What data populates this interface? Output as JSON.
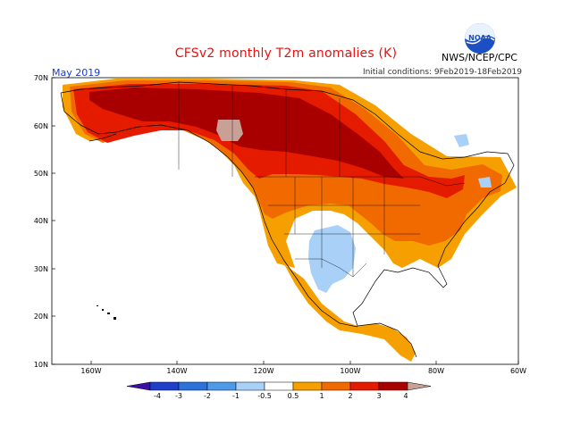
{
  "header": {
    "title": "CFSv2 monthly T2m anomalies (K)",
    "month": "May 2019",
    "initial_conditions": "Initial conditions: 9Feb2019-18Feb2019",
    "agency": "NWS/NCEP/CPC",
    "logo_text": "NOAA"
  },
  "axes": {
    "lat_labels": [
      "70N",
      "60N",
      "50N",
      "40N",
      "30N",
      "20N",
      "10N"
    ],
    "lon_labels": [
      "160W",
      "140W",
      "120W",
      "100W",
      "80W",
      "60W"
    ]
  },
  "colorbar": {
    "labels": [
      "-4",
      "-3",
      "-2",
      "-1",
      "-0.5",
      "0.5",
      "1",
      "2",
      "3",
      "4"
    ],
    "colors": [
      "#3b0fa8",
      "#1f3fc9",
      "#2d72d8",
      "#4f9ae8",
      "#a9d1f7",
      "#ffffff",
      "#f5a000",
      "#f06a00",
      "#e51b00",
      "#a80000",
      "#c8a096"
    ]
  },
  "legend_colors": {
    "neutral": "#ffffff",
    "warm_1": "#f5a000",
    "warm_2": "#f06a00",
    "warm_3": "#e51b00",
    "warm_4": "#a80000",
    "warm_5": "#c8a096",
    "cool_1": "#a9d1f7"
  }
}
